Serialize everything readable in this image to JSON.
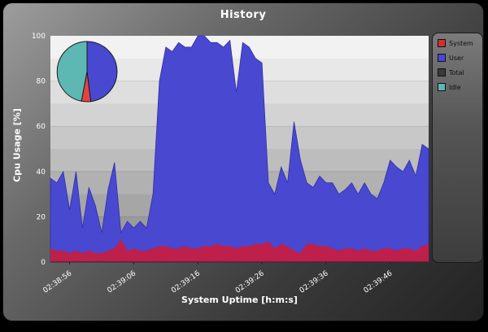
{
  "window": {
    "title": "History"
  },
  "axes": {
    "y_label": "Cpu Usage [%]",
    "x_label": "System Uptime [h:m:s]",
    "y_ticks": [
      0,
      20,
      40,
      60,
      80,
      100
    ]
  },
  "legend": {
    "items": [
      {
        "label": "System",
        "color": "#d32f2f"
      },
      {
        "label": "User",
        "color": "#4848d0"
      },
      {
        "label": "Total",
        "color": "#3a3a3a"
      },
      {
        "label": "Idle",
        "color": "#5db8b4"
      }
    ]
  },
  "chart_data": [
    {
      "type": "area",
      "stacked": true,
      "title": "History",
      "xlabel": "System Uptime [h:m:s]",
      "ylabel": "Cpu Usage [%]",
      "ylim": [
        0,
        100
      ],
      "n_points": 60,
      "x_tick_labels": [
        "02:38:56",
        "02:39:06",
        "02:39:16",
        "02:39:26",
        "02:39:36",
        "02:39:46"
      ],
      "x_tick_indices": [
        3,
        13,
        23,
        33,
        43,
        53
      ],
      "legend_position": "right",
      "series": [
        {
          "name": "System",
          "color": "#bf1f4b",
          "values": [
            6,
            5,
            5,
            4,
            5,
            4,
            5,
            4,
            4,
            5,
            6,
            10,
            5,
            6,
            5,
            5,
            6,
            7,
            7,
            6,
            6,
            7,
            6,
            6,
            7,
            7,
            8,
            7,
            7,
            6,
            7,
            7,
            8,
            8,
            9,
            6,
            8,
            7,
            5,
            4,
            8,
            8,
            7,
            7,
            6,
            5,
            6,
            6,
            5,
            6,
            5,
            5,
            6,
            6,
            5,
            6,
            6,
            5,
            7,
            8
          ]
        },
        {
          "name": "User",
          "color": "#4848d0",
          "values": [
            31,
            30,
            35,
            19,
            35,
            11,
            28,
            21,
            9,
            27,
            38,
            3,
            13,
            9,
            13,
            10,
            24,
            73,
            88,
            87,
            91,
            88,
            89,
            94,
            93,
            90,
            89,
            88,
            91,
            69,
            90,
            88,
            82,
            80,
            26,
            24,
            34,
            28,
            57,
            41,
            27,
            25,
            31,
            28,
            29,
            25,
            26,
            29,
            25,
            29,
            25,
            23,
            29,
            39,
            37,
            34,
            39,
            33,
            45,
            42
          ]
        }
      ]
    },
    {
      "type": "pie",
      "slices": [
        {
          "label": "User",
          "value": 48,
          "color": "#4848d0"
        },
        {
          "label": "System",
          "value": 5,
          "color": "#e04545"
        },
        {
          "label": "Idle",
          "value": 47,
          "color": "#5db8b4"
        }
      ]
    }
  ]
}
